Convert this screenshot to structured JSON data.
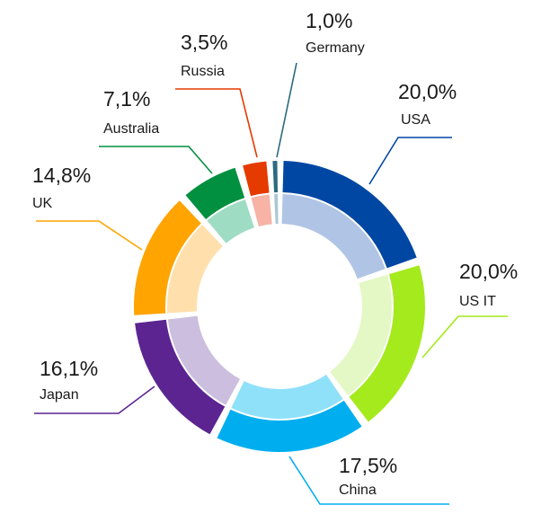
{
  "chart_data": {
    "type": "pie",
    "variant": "donut",
    "slices": [
      {
        "label": "USA",
        "value_label": "20,0%",
        "value": 20.0,
        "color": "#0047a3",
        "inner_color": "#b0c4e5"
      },
      {
        "label": "US IT",
        "value_label": "20,0%",
        "value": 20.0,
        "color": "#a4ea1d",
        "inner_color": "#e3f8c4"
      },
      {
        "label": "China",
        "value_label": "17,5%",
        "value": 17.5,
        "color": "#00aeef",
        "inner_color": "#8fe1fa"
      },
      {
        "label": "Japan",
        "value_label": "16,1%",
        "value": 16.1,
        "color": "#5b2491",
        "inner_color": "#cbbede"
      },
      {
        "label": "UK",
        "value_label": "14,8%",
        "value": 14.8,
        "color": "#ffa400",
        "inner_color": "#ffe0ad"
      },
      {
        "label": "Australia",
        "value_label": "7,1%",
        "value": 7.1,
        "color": "#00903f",
        "inner_color": "#9fdcc4"
      },
      {
        "label": "Russia",
        "value_label": "3,5%",
        "value": 3.5,
        "color": "#e53a00",
        "inner_color": "#f6b3a6"
      },
      {
        "label": "Germany",
        "value_label": "1,0%",
        "value": 1.0,
        "color": "#2b6a7f",
        "inner_color": "#a9c8d3"
      }
    ]
  }
}
